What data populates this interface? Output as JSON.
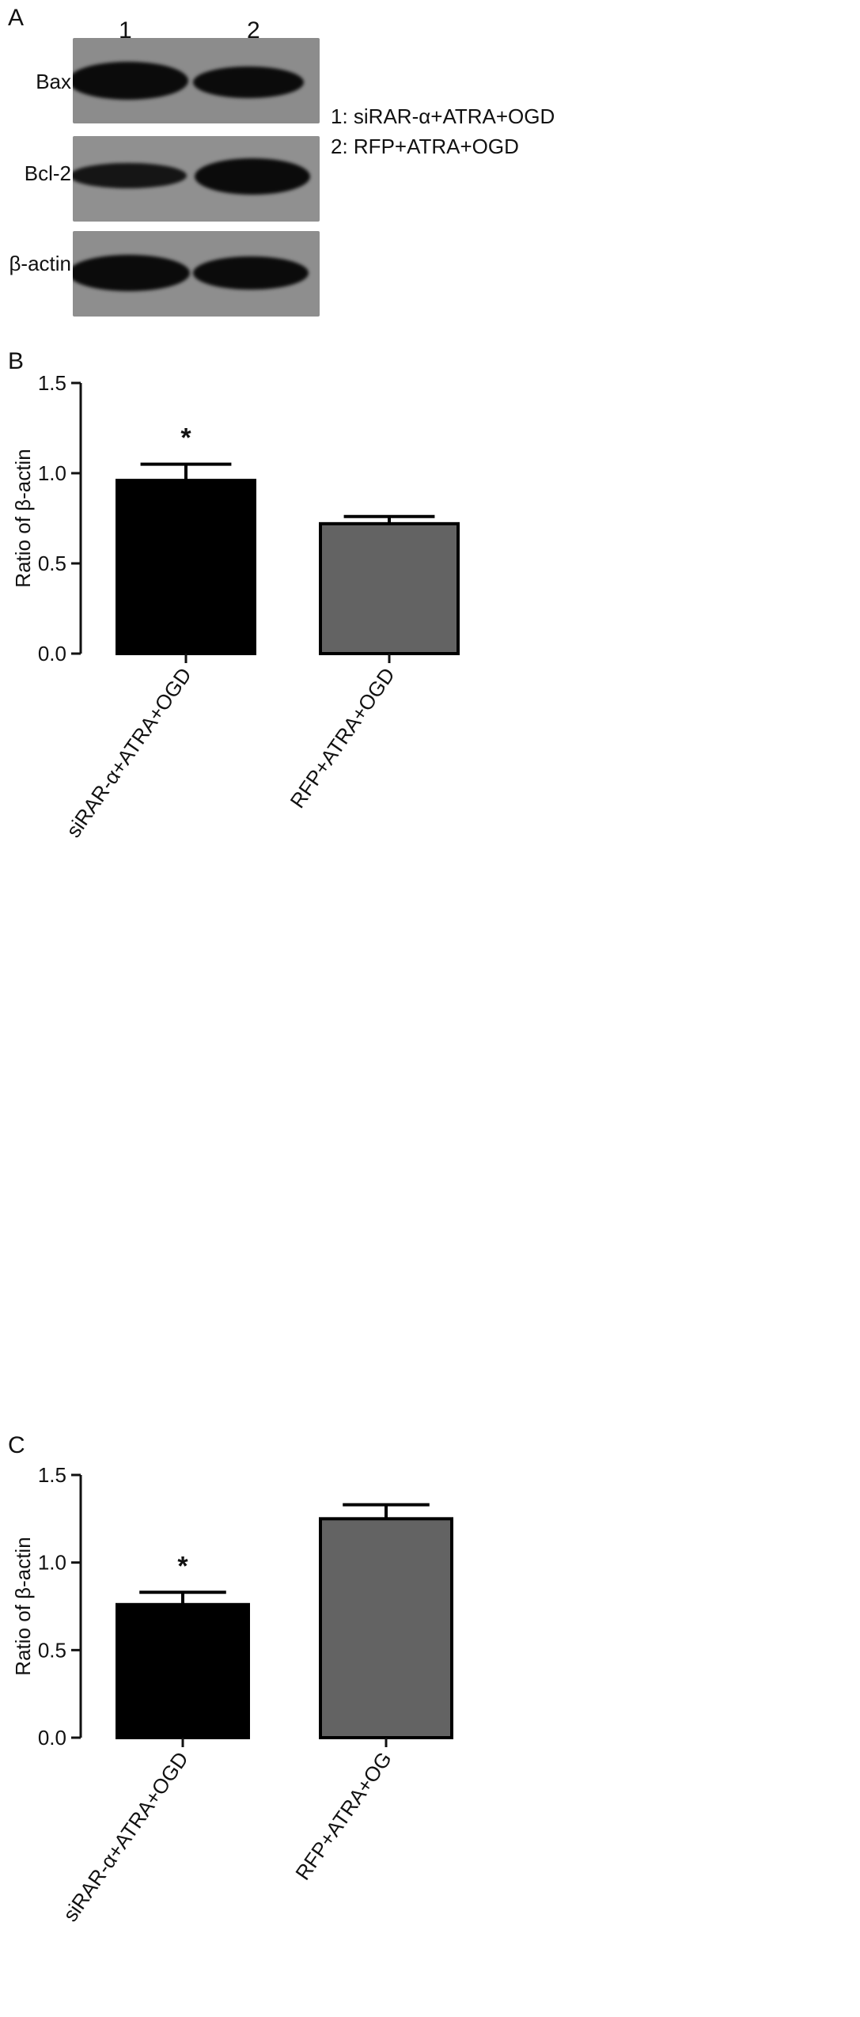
{
  "figure": {
    "panels": [
      "A",
      "B",
      "C"
    ]
  },
  "panel_a": {
    "lanes": [
      "1",
      "2"
    ],
    "rows": [
      "Bax",
      "Bcl-2",
      "β-actin"
    ],
    "legend": [
      "1: siRAR-α+ATRA+OGD",
      "2: RFP+ATRA+OGD"
    ]
  },
  "chart_data": [
    {
      "type": "bar",
      "panel": "B",
      "categories": [
        "siRAR-α+ATRA+OGD",
        "RFP+ATRA+OGD"
      ],
      "values": [
        0.96,
        0.72
      ],
      "errors": [
        0.09,
        0.04
      ],
      "significance": [
        "*",
        ""
      ],
      "bar_colors": [
        "#000000",
        "#636363"
      ],
      "ylabel": "Ratio of β-actin",
      "ylim": [
        0,
        1.5
      ],
      "yticks": [
        "0.0",
        "0.5",
        "1.0",
        "1.5"
      ],
      "grid": false
    },
    {
      "type": "bar",
      "panel": "C",
      "categories": [
        "siRAR-α+ATRA+OGD",
        "RFP+ATRA+OG"
      ],
      "values": [
        0.76,
        1.25
      ],
      "errors": [
        0.07,
        0.08
      ],
      "significance": [
        "*",
        ""
      ],
      "bar_colors": [
        "#000000",
        "#636363"
      ],
      "ylabel": "Ratio of β-actin",
      "ylim": [
        0,
        1.5
      ],
      "yticks": [
        "0.0",
        "0.5",
        "1.0",
        "1.5"
      ],
      "grid": false
    }
  ]
}
